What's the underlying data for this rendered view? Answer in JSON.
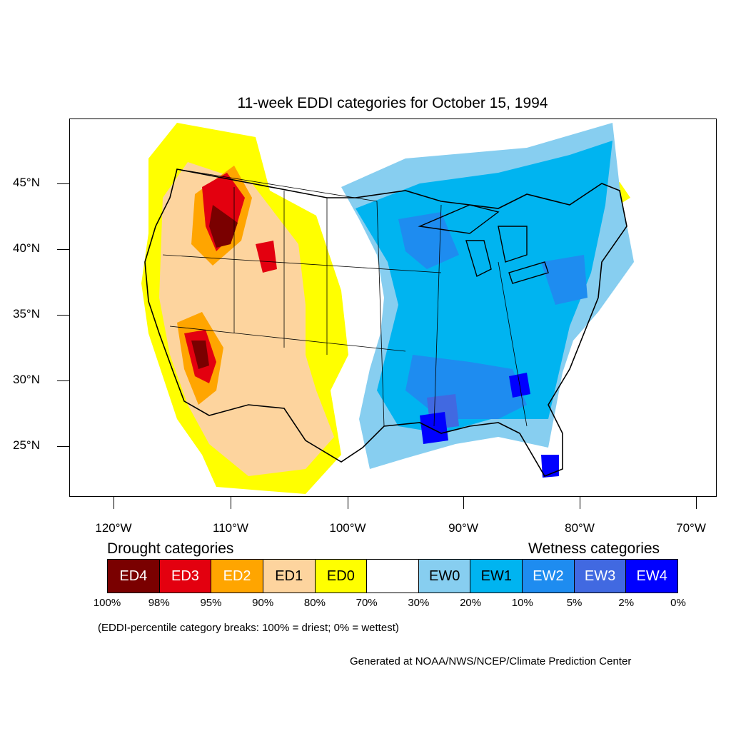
{
  "title": "11-week EDDI categories for October 15, 1994",
  "y_axis": {
    "ticks": [
      "45°N",
      "40°N",
      "35°N",
      "30°N",
      "25°N"
    ]
  },
  "x_axis": {
    "ticks": [
      "120°W",
      "110°W",
      "100°W",
      "90°W",
      "80°W",
      "70°W"
    ]
  },
  "legend": {
    "drought_title": "Drought categories",
    "wetness_title": "Wetness categories",
    "categories": [
      {
        "label": "ED4",
        "color": "#7a0000",
        "text_color": "#ffffff"
      },
      {
        "label": "ED3",
        "color": "#e3000f",
        "text_color": "#ffffff"
      },
      {
        "label": "ED2",
        "color": "#ffa500",
        "text_color": "#ffffff"
      },
      {
        "label": "ED1",
        "color": "#fdd49e",
        "text_color": "#000000"
      },
      {
        "label": "ED0",
        "color": "#ffff00",
        "text_color": "#000000"
      },
      {
        "label": "",
        "color": "#ffffff",
        "text_color": "#000000"
      },
      {
        "label": "EW0",
        "color": "#87cef0",
        "text_color": "#000000"
      },
      {
        "label": "EW1",
        "color": "#00b4f0",
        "text_color": "#000000"
      },
      {
        "label": "EW2",
        "color": "#1e8cf0",
        "text_color": "#ffffff"
      },
      {
        "label": "EW3",
        "color": "#4169e1",
        "text_color": "#ffffff"
      },
      {
        "label": "EW4",
        "color": "#0000ff",
        "text_color": "#ffffff"
      }
    ],
    "breaks": [
      "100%",
      "98%",
      "95%",
      "90%",
      "80%",
      "70%",
      "30%",
      "20%",
      "10%",
      "5%",
      "2%",
      "0%"
    ]
  },
  "note": "(EDDI-percentile category breaks: 100% = driest; 0% = wettest)",
  "credit": "Generated at NOAA/NWS/NCEP/Climate Prediction Center"
}
